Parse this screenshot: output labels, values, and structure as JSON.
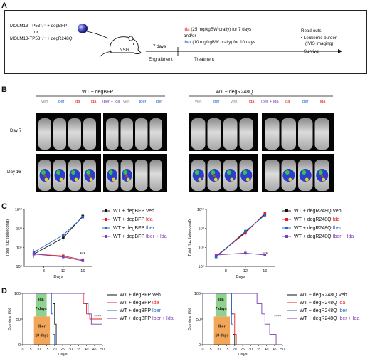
{
  "panels": {
    "A": "A",
    "B": "B",
    "C": "C",
    "D": "D"
  },
  "panelA": {
    "line1": "MOLM13-TP53⁻/⁻ + degBFP",
    "line2": "or",
    "line3": "MOLM13-TP53⁻/⁻ + degR248Q",
    "mouse_label": "NSG",
    "days": "7 days",
    "engraftment": "Engraftment",
    "ida_drug": "Ida",
    "ida_dose": " (25 mg/kgBW orally) for 7 days",
    "andor": "and/or",
    "iber_drug": "Iber",
    "iber_dose": " (10 mg/kgBW orally) for 10 days",
    "treatment": "Treatment",
    "readouts_title": "Read-outs:",
    "readout1_a": "• Leukemic burden",
    "readout1_b": "(IVIS imaging)",
    "readout2": "• Survival"
  },
  "panelB": {
    "group1": "WT + degBFP",
    "group2": "WT + degR248Q",
    "day7": "Day 7",
    "day16": "Day 16",
    "labels": [
      {
        "text": "Veh",
        "color": "#888888"
      },
      {
        "text": "Iber",
        "color": "#2563c7"
      },
      {
        "text": "Ida",
        "color": "#e02020"
      },
      {
        "text": "Ida",
        "color": "#e02020"
      },
      {
        "text": "Iber + Ida",
        "color": "#7a3fb0"
      },
      {
        "text": "Veh",
        "color": "#888888"
      },
      {
        "text": "Iber",
        "color": "#2563c7"
      },
      {
        "text": "Iber",
        "color": "#2563c7"
      }
    ],
    "labels2": [
      {
        "text": "Veh",
        "color": "#888888"
      },
      {
        "text": "Iber",
        "color": "#2563c7"
      },
      {
        "text": "Veh",
        "color": "#888888"
      },
      {
        "text": "Ida",
        "color": "#e02020"
      },
      {
        "text": "Iber + Ida",
        "color": "#7a3fb0"
      },
      {
        "text": "Ida",
        "color": "#e02020"
      },
      {
        "text": "Iber",
        "color": "#2563c7"
      },
      {
        "text": "Ida",
        "color": "#e02020"
      }
    ]
  },
  "chart_data": [
    {
      "type": "line",
      "panel": "C-left",
      "xlabel": "Days",
      "ylabel": "Total flux (p/second)",
      "x": [
        6,
        12,
        16
      ],
      "xticks": [
        8,
        12,
        16
      ],
      "yticks": [
        "10⁴",
        "10⁶",
        "10⁸",
        "10¹⁰"
      ],
      "ylim_log10": [
        4,
        10
      ],
      "significance": "***",
      "series": [
        {
          "name": "WT + degBFP Veh",
          "color": "#111111",
          "values_log10": [
            5.3,
            7.0,
            9.3
          ]
        },
        {
          "name": "WT + degBFP Ida",
          "color": "#e02020",
          "values_log10": [
            5.3,
            5.1,
            4.7
          ]
        },
        {
          "name": "WT + degBFP Iber",
          "color": "#2563c7",
          "values_log10": [
            5.5,
            7.3,
            9.2
          ]
        },
        {
          "name": "WT + degBFP Iber + Ida",
          "color": "#7a3fb0",
          "values_log10": [
            5.3,
            5.0,
            4.6
          ]
        }
      ]
    },
    {
      "type": "line",
      "panel": "C-right",
      "xlabel": "Days",
      "ylabel": "Total flux (p/second)",
      "x": [
        6,
        12,
        16
      ],
      "xticks": [
        8,
        12,
        16
      ],
      "yticks": [
        "10⁴",
        "10⁶",
        "10⁸",
        "10¹⁰"
      ],
      "ylim_log10": [
        4,
        10
      ],
      "significance": "***",
      "series": [
        {
          "name": "WT + degR248Q Veh",
          "color": "#111111",
          "values_log10": [
            5.0,
            7.6,
            9.5
          ]
        },
        {
          "name": "WT + degR248Q Ida",
          "color": "#e02020",
          "values_log10": [
            5.1,
            7.5,
            9.6
          ]
        },
        {
          "name": "WT + degR248Q Iber",
          "color": "#2563c7",
          "values_log10": [
            5.0,
            7.7,
            9.4
          ]
        },
        {
          "name": "WT + degR248Q Iber + Ida",
          "color": "#7a3fb0",
          "values_log10": [
            5.2,
            5.4,
            5.2
          ]
        }
      ]
    },
    {
      "type": "line",
      "panel": "D-left",
      "xlabel": "Days",
      "ylabel": "Survival (%)",
      "xlim": [
        0,
        50
      ],
      "ylim": [
        0,
        100
      ],
      "xticks": [
        0,
        5,
        10,
        15,
        20,
        25,
        30,
        35,
        40,
        45,
        50
      ],
      "yticks": [
        0,
        50,
        100
      ],
      "significance": "****",
      "treatment_boxes": [
        {
          "label": "Ida",
          "sub": "7 days",
          "start": 8,
          "end": 15,
          "color": "#8fd18f"
        },
        {
          "label": "Iber",
          "sub": "10 days",
          "start": 7,
          "end": 17,
          "color": "#f2a65a"
        }
      ],
      "series": [
        {
          "name": "WT + degBFP Veh",
          "color": "#111111",
          "steps": [
            [
              0,
              100
            ],
            [
              19,
              100
            ],
            [
              19,
              80
            ],
            [
              20,
              80
            ],
            [
              20,
              40
            ],
            [
              21,
              40
            ],
            [
              21,
              0
            ]
          ]
        },
        {
          "name": "WT + degBFP Ida",
          "color": "#e02020",
          "steps": [
            [
              0,
              100
            ],
            [
              38,
              100
            ],
            [
              38,
              80
            ],
            [
              40,
              80
            ],
            [
              40,
              60
            ],
            [
              42,
              60
            ],
            [
              42,
              50
            ],
            [
              50,
              50
            ]
          ]
        },
        {
          "name": "WT + degBFP Iber",
          "color": "#2563c7",
          "steps": [
            [
              0,
              100
            ],
            [
              18,
              100
            ],
            [
              18,
              60
            ],
            [
              19,
              60
            ],
            [
              19,
              20
            ],
            [
              20,
              20
            ],
            [
              20,
              0
            ]
          ]
        },
        {
          "name": "WT + degBFP Iber + Ida",
          "color": "#7a3fb0",
          "steps": [
            [
              0,
              100
            ],
            [
              39,
              100
            ],
            [
              39,
              80
            ],
            [
              41,
              80
            ],
            [
              41,
              60
            ],
            [
              43,
              60
            ],
            [
              43,
              40
            ],
            [
              50,
              40
            ]
          ]
        }
      ]
    },
    {
      "type": "line",
      "panel": "D-right",
      "xlabel": "Days",
      "ylabel": "Survival (%)",
      "xlim": [
        0,
        50
      ],
      "ylim": [
        0,
        100
      ],
      "xticks": [
        0,
        5,
        10,
        15,
        20,
        25,
        30,
        35,
        40,
        45,
        50
      ],
      "yticks": [
        0,
        50,
        100
      ],
      "significance": "****",
      "treatment_boxes": [
        {
          "label": "Ida",
          "sub": "7 days",
          "start": 8,
          "end": 15,
          "color": "#8fd18f"
        },
        {
          "label": "Iber",
          "sub": "10 days",
          "start": 7,
          "end": 17,
          "color": "#f2a65a"
        }
      ],
      "series": [
        {
          "name": "WT + degR248Q Veh",
          "color": "#111111",
          "steps": [
            [
              0,
              100
            ],
            [
              18,
              100
            ],
            [
              18,
              60
            ],
            [
              19,
              60
            ],
            [
              19,
              20
            ],
            [
              20,
              20
            ],
            [
              20,
              0
            ]
          ]
        },
        {
          "name": "WT + degR248Q Ida",
          "color": "#e02020",
          "steps": [
            [
              0,
              100
            ],
            [
              19,
              100
            ],
            [
              19,
              60
            ],
            [
              20,
              60
            ],
            [
              20,
              20
            ],
            [
              21,
              20
            ],
            [
              21,
              0
            ]
          ]
        },
        {
          "name": "WT + degR248Q Iber",
          "color": "#2563c7",
          "steps": [
            [
              0,
              100
            ],
            [
              18,
              100
            ],
            [
              18,
              40
            ],
            [
              19,
              40
            ],
            [
              19,
              0
            ]
          ]
        },
        {
          "name": "WT + degR248Q Iber + Ida",
          "color": "#7a3fb0",
          "steps": [
            [
              0,
              100
            ],
            [
              34,
              100
            ],
            [
              34,
              80
            ],
            [
              37,
              80
            ],
            [
              37,
              60
            ],
            [
              39,
              60
            ],
            [
              39,
              40
            ],
            [
              42,
              40
            ],
            [
              42,
              20
            ],
            [
              46,
              20
            ],
            [
              46,
              0
            ]
          ]
        }
      ]
    }
  ]
}
